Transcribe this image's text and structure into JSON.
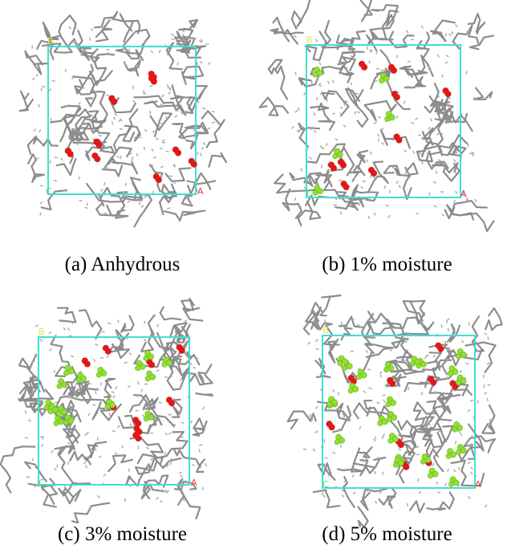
{
  "figure": {
    "panels": [
      {
        "id": "a",
        "caption": "(a) Anhydrous",
        "axis_labels": {
          "b": "B",
          "c": "C",
          "a": "A"
        },
        "red_molecules": 9,
        "water_molecules": 0
      },
      {
        "id": "b",
        "caption": "(b) 1% moisture",
        "axis_labels": {
          "b": "B",
          "c": "C",
          "a": "A"
        },
        "red_molecules": 9,
        "water_molecules": 5
      },
      {
        "id": "c",
        "caption": "(c) 3% moisture",
        "axis_labels": {
          "b": "B",
          "c": "C",
          "a": "A"
        },
        "red_molecules": 9,
        "water_molecules": 15
      },
      {
        "id": "d",
        "caption": "(d) 5% moisture",
        "axis_labels": {
          "b": "B",
          "c": "C",
          "a": "A"
        },
        "red_molecules": 9,
        "water_molecules": 25
      }
    ],
    "colors": {
      "background": "#ffffff",
      "cell_box": "#40e0d0",
      "polymer_chain": "#8c8c8c",
      "red_atoms": "#e01818",
      "water_atoms": "#90e030",
      "label_b": "#e8e44a",
      "label_c": "#48e060",
      "label_a": "#e84040"
    }
  }
}
